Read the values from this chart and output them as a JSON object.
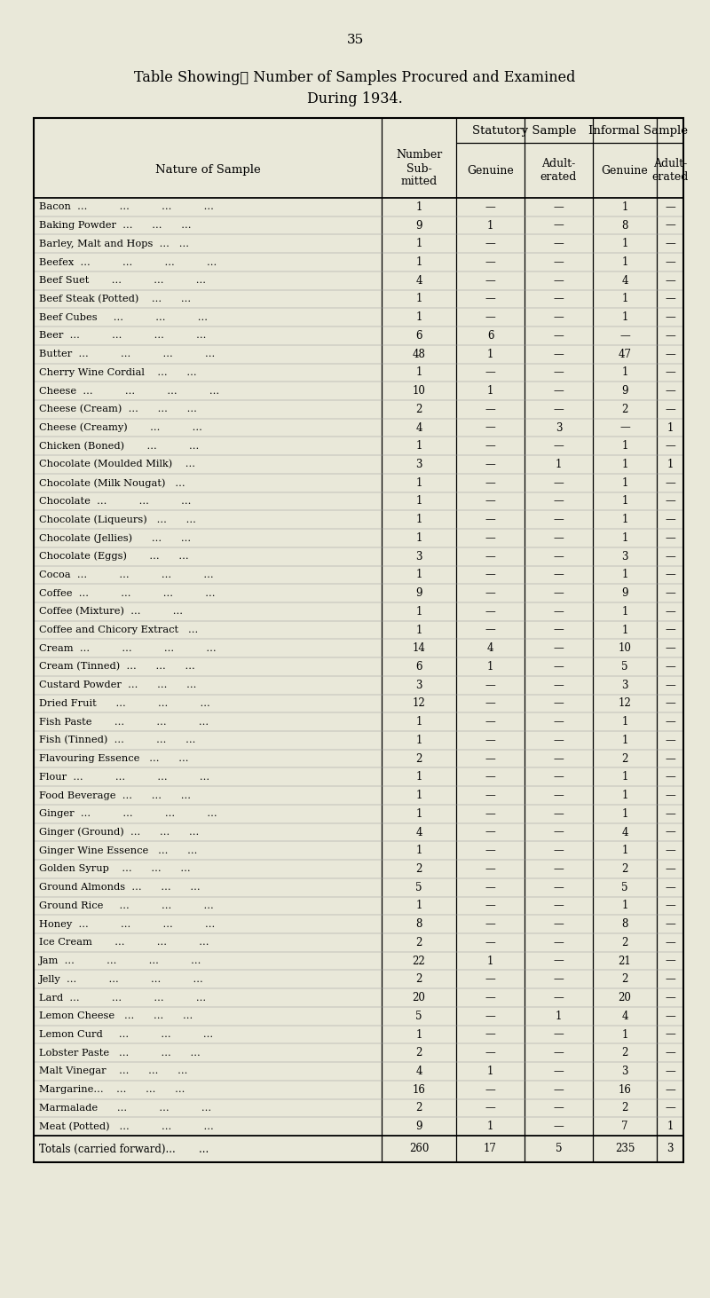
{
  "page_number": "35",
  "title_line1": "Table Showing‧ Number of Samples Procured and Examined",
  "title_line2": "During 1934.",
  "bg_color": "#e9e8d9",
  "rows": [
    [
      "Bacon  ...          ...          ...          ...",
      "1",
      "—",
      "—",
      "1",
      "—"
    ],
    [
      "Baking Powder  ...      ...      ...",
      "9",
      "1",
      "—",
      "8",
      "—"
    ],
    [
      "Barley, Malt and Hops  ...   ...",
      "1",
      "—",
      "—",
      "1",
      "—"
    ],
    [
      "Beefex  ...          ...          ...          ...",
      "1",
      "—",
      "—",
      "1",
      "—"
    ],
    [
      "Beef Suet       ...          ...          ...",
      "4",
      "—",
      "—",
      "4",
      "—"
    ],
    [
      "Beef Steak (Potted)    ...      ...",
      "1",
      "—",
      "—",
      "1",
      "—"
    ],
    [
      "Beef Cubes     ...          ...          ...",
      "1",
      "—",
      "—",
      "1",
      "—"
    ],
    [
      "Beer  ...          ...          ...          ...",
      "6",
      "6",
      "—",
      "—",
      "—"
    ],
    [
      "Butter  ...          ...          ...          ...",
      "48",
      "1",
      "—",
      "47",
      "—"
    ],
    [
      "Cherry Wine Cordial    ...      ...",
      "1",
      "—",
      "—",
      "1",
      "—"
    ],
    [
      "Cheese  ...          ...          ...          ...",
      "10",
      "1",
      "—",
      "9",
      "—"
    ],
    [
      "Cheese (Cream)  ...      ...      ...",
      "2",
      "—",
      "—",
      "2",
      "—"
    ],
    [
      "Cheese (Creamy)       ...          ...",
      "4",
      "—",
      "3",
      "—",
      "1"
    ],
    [
      "Chicken (Boned)       ...          ...",
      "1",
      "—",
      "—",
      "1",
      "—"
    ],
    [
      "Chocolate (Moulded Milk)    ...",
      "3",
      "—",
      "1",
      "1",
      "1"
    ],
    [
      "Chocolate (Milk Nougat)   ...",
      "1",
      "—",
      "—",
      "1",
      "—"
    ],
    [
      "Chocolate  ...          ...          ...",
      "1",
      "—",
      "—",
      "1",
      "—"
    ],
    [
      "Chocolate (Liqueurs)   ...      ...",
      "1",
      "—",
      "—",
      "1",
      "—"
    ],
    [
      "Chocolate (Jellies)      ...      ...",
      "1",
      "—",
      "—",
      "1",
      "—"
    ],
    [
      "Chocolate (Eggs)       ...      ...",
      "3",
      "—",
      "—",
      "3",
      "—"
    ],
    [
      "Cocoa  ...          ...          ...          ...",
      "1",
      "—",
      "—",
      "1",
      "—"
    ],
    [
      "Coffee  ...          ...          ...          ...",
      "9",
      "—",
      "—",
      "9",
      "—"
    ],
    [
      "Coffee (Mixture)  ...          ...",
      "1",
      "—",
      "—",
      "1",
      "—"
    ],
    [
      "Coffee and Chicory Extract   ...",
      "1",
      "—",
      "—",
      "1",
      "—"
    ],
    [
      "Cream  ...          ...          ...          ...",
      "14",
      "4",
      "—",
      "10",
      "—"
    ],
    [
      "Cream (Tinned)  ...      ...      ...",
      "6",
      "1",
      "—",
      "5",
      "—"
    ],
    [
      "Custard Powder  ...      ...      ...",
      "3",
      "—",
      "—",
      "3",
      "—"
    ],
    [
      "Dried Fruit      ...          ...          ...",
      "12",
      "—",
      "—",
      "12",
      "—"
    ],
    [
      "Fish Paste       ...          ...          ...",
      "1",
      "—",
      "—",
      "1",
      "—"
    ],
    [
      "Fish (Tinned)  ...          ...      ...",
      "1",
      "—",
      "—",
      "1",
      "—"
    ],
    [
      "Flavouring Essence   ...      ...",
      "2",
      "—",
      "—",
      "2",
      "—"
    ],
    [
      "Flour  ...          ...          ...          ...",
      "1",
      "—",
      "—",
      "1",
      "—"
    ],
    [
      "Food Beverage  ...      ...      ...",
      "1",
      "—",
      "—",
      "1",
      "—"
    ],
    [
      "Ginger  ...          ...          ...          ...",
      "1",
      "—",
      "—",
      "1",
      "—"
    ],
    [
      "Ginger (Ground)  ...      ...      ...",
      "4",
      "—",
      "—",
      "4",
      "—"
    ],
    [
      "Ginger Wine Essence   ...      ...",
      "1",
      "—",
      "—",
      "1",
      "—"
    ],
    [
      "Golden Syrup    ...      ...      ...",
      "2",
      "—",
      "—",
      "2",
      "—"
    ],
    [
      "Ground Almonds  ...      ...      ...",
      "5",
      "—",
      "—",
      "5",
      "—"
    ],
    [
      "Ground Rice     ...          ...          ...",
      "1",
      "—",
      "—",
      "1",
      "—"
    ],
    [
      "Honey  ...          ...          ...          ...",
      "8",
      "—",
      "—",
      "8",
      "—"
    ],
    [
      "Ice Cream       ...          ...          ...",
      "2",
      "—",
      "—",
      "2",
      "—"
    ],
    [
      "Jam  ...          ...          ...          ...",
      "22",
      "1",
      "—",
      "21",
      "—"
    ],
    [
      "Jelly  ...          ...          ...          ...",
      "2",
      "—",
      "—",
      "2",
      "—"
    ],
    [
      "Lard  ...          ...          ...          ...",
      "20",
      "—",
      "—",
      "20",
      "—"
    ],
    [
      "Lemon Cheese   ...      ...      ...",
      "5",
      "—",
      "1",
      "4",
      "—"
    ],
    [
      "Lemon Curd     ...          ...          ...",
      "1",
      "—",
      "—",
      "1",
      "—"
    ],
    [
      "Lobster Paste   ...          ...      ...",
      "2",
      "—",
      "—",
      "2",
      "—"
    ],
    [
      "Malt Vinegar    ...      ...      ...",
      "4",
      "1",
      "—",
      "3",
      "—"
    ],
    [
      "Margarine...    ...      ...      ...",
      "16",
      "—",
      "—",
      "16",
      "—"
    ],
    [
      "Marmalade      ...          ...          ...",
      "2",
      "—",
      "—",
      "2",
      "—"
    ],
    [
      "Meat (Potted)   ...          ...          ...",
      "9",
      "1",
      "—",
      "7",
      "1"
    ]
  ],
  "totals_row": [
    "Totals (carried forward)...       ...",
    "260",
    "17",
    "5",
    "235",
    "3"
  ]
}
